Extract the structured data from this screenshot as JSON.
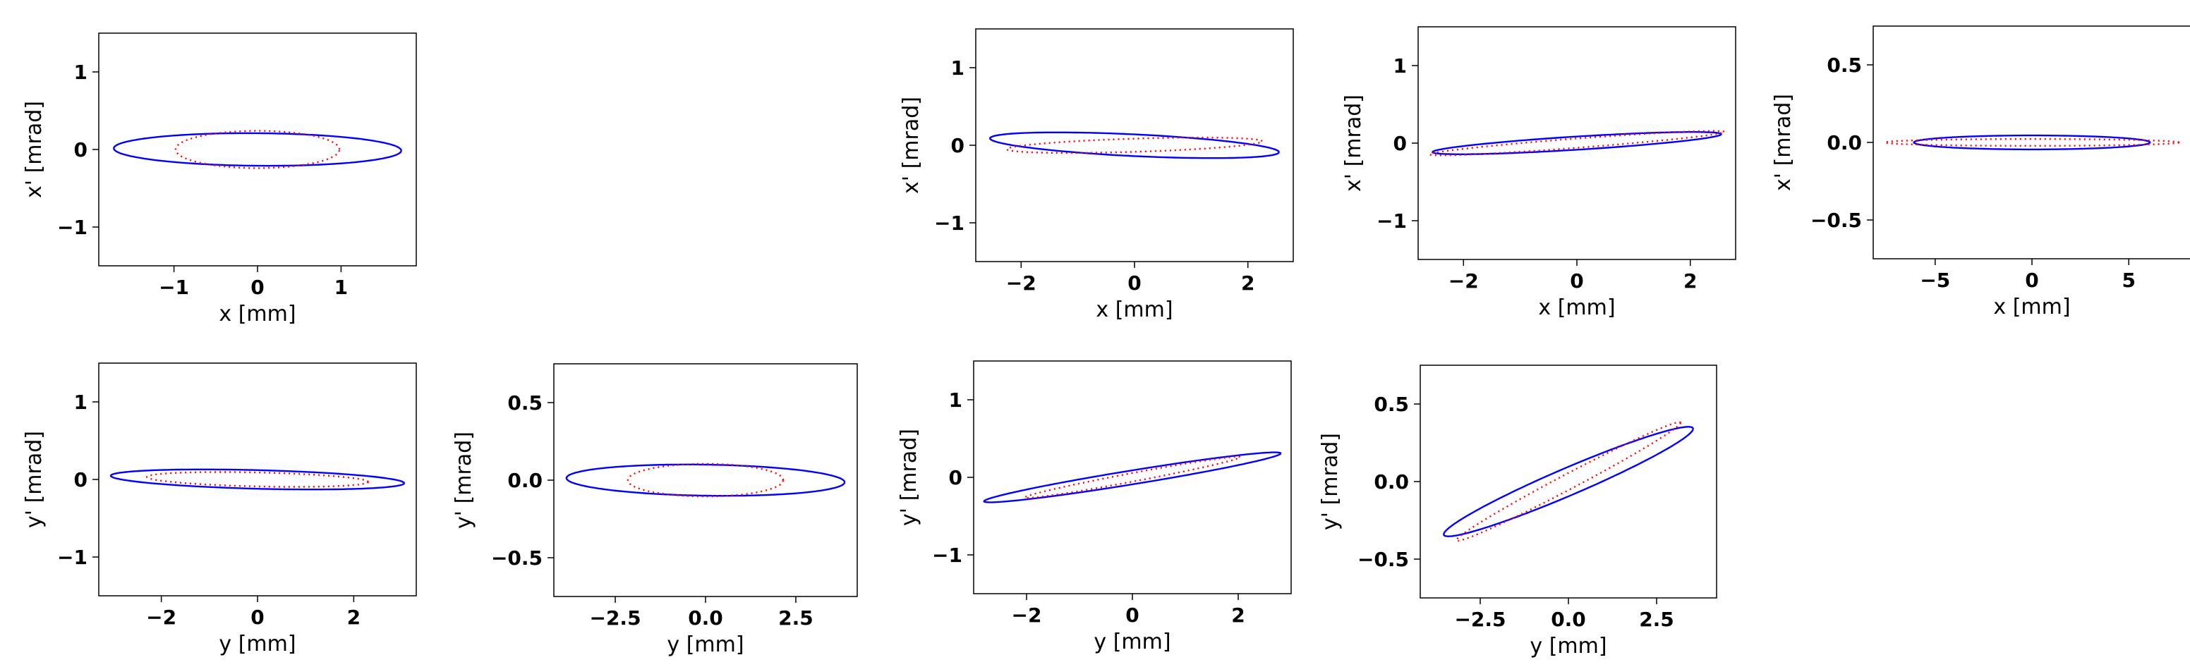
{
  "colors": {
    "solid_series": "#0000ff",
    "dotted_series": "#ff0000"
  },
  "chart_data": [
    {
      "type": "line",
      "panel": "row1-col1",
      "xlabel": "x [mm]",
      "ylabel": "x' [mrad]",
      "xlim": [
        -1.9,
        1.9
      ],
      "ylim": [
        -1.5,
        1.5
      ],
      "xticks": [
        -1,
        0,
        1
      ],
      "yticks": [
        -1,
        0,
        1
      ],
      "xtick_labels": [
        "−1",
        "0",
        "1"
      ],
      "ytick_labels": [
        "−1",
        "0",
        "1"
      ],
      "series": [
        {
          "style": "solid",
          "ellipse": {
            "cx": 0,
            "cy": 0,
            "a": 1.72,
            "b": 0.21,
            "tilt_deg": -0.5
          }
        },
        {
          "style": "dotted",
          "ellipse": {
            "cx": 0,
            "cy": 0,
            "a": 0.98,
            "b": 0.24,
            "tilt_deg": 0
          }
        }
      ]
    },
    {
      "type": "line",
      "panel": "row1-col3",
      "xlabel": "x [mm]",
      "ylabel": "x' [mrad]",
      "xlim": [
        -2.8,
        2.8
      ],
      "ylim": [
        -1.5,
        1.5
      ],
      "xticks": [
        -2,
        0,
        2
      ],
      "yticks": [
        -1,
        0,
        1
      ],
      "xtick_labels": [
        "−2",
        "0",
        "2"
      ],
      "ytick_labels": [
        "−1",
        "0",
        "1"
      ],
      "series": [
        {
          "style": "solid",
          "ellipse": {
            "cx": 0,
            "cy": 0,
            "a": 2.55,
            "b": 0.14,
            "tilt_deg": -2.0
          }
        },
        {
          "style": "dotted",
          "ellipse": {
            "cx": 0,
            "cy": 0,
            "a": 2.25,
            "b": 0.085,
            "tilt_deg": 1.3
          }
        }
      ]
    },
    {
      "type": "line",
      "panel": "row1-col4",
      "xlabel": "x [mm]",
      "ylabel": "x' [mrad]",
      "xlim": [
        -2.8,
        2.8
      ],
      "ylim": [
        -1.5,
        1.5
      ],
      "xticks": [
        -2,
        0,
        2
      ],
      "yticks": [
        -1,
        0,
        1
      ],
      "xtick_labels": [
        "−2",
        "0",
        "2"
      ],
      "ytick_labels": [
        "−1",
        "0",
        "1"
      ],
      "series": [
        {
          "style": "solid",
          "ellipse": {
            "cx": 0,
            "cy": 0,
            "a": 2.55,
            "b": 0.085,
            "tilt_deg": 2.6
          }
        },
        {
          "style": "dotted",
          "ellipse": {
            "cx": 0,
            "cy": 0,
            "a": 2.6,
            "b": 0.06,
            "tilt_deg": 3.2
          }
        }
      ]
    },
    {
      "type": "line",
      "panel": "row1-col5",
      "xlabel": "x [mm]",
      "ylabel": "x' [mrad]",
      "xlim": [
        -8.2,
        8.2
      ],
      "ylim": [
        -0.75,
        0.75
      ],
      "xticks": [
        -5,
        0,
        5
      ],
      "yticks": [
        -0.5,
        0.0,
        0.5
      ],
      "xtick_labels": [
        "−5",
        "0",
        "5"
      ],
      "ytick_labels": [
        "−0.5",
        "0.0",
        "0.5"
      ],
      "series": [
        {
          "style": "solid",
          "ellipse": {
            "cx": 0,
            "cy": 0,
            "a": 6.1,
            "b": 0.045,
            "tilt_deg": 0
          }
        },
        {
          "style": "dotted",
          "ellipse": {
            "cx": 0,
            "cy": 0,
            "a": 7.6,
            "b": 0.022,
            "tilt_deg": 0
          }
        }
      ]
    },
    {
      "type": "line",
      "panel": "row2-col1",
      "xlabel": "y [mm]",
      "ylabel": "y' [mrad]",
      "xlim": [
        -3.3,
        3.3
      ],
      "ylim": [
        -1.5,
        1.5
      ],
      "xticks": [
        -2,
        0,
        2
      ],
      "yticks": [
        -1,
        0,
        1
      ],
      "xtick_labels": [
        "−2",
        "0",
        "2"
      ],
      "ytick_labels": [
        "−1",
        "0",
        "1"
      ],
      "series": [
        {
          "style": "solid",
          "ellipse": {
            "cx": 0,
            "cy": 0,
            "a": 3.05,
            "b": 0.12,
            "tilt_deg": -0.9
          }
        },
        {
          "style": "dotted",
          "ellipse": {
            "cx": 0,
            "cy": 0,
            "a": 2.3,
            "b": 0.09,
            "tilt_deg": -0.8
          }
        }
      ]
    },
    {
      "type": "line",
      "panel": "row2-col2",
      "xlabel": "y [mm]",
      "ylabel": "y' [mrad]",
      "xlim": [
        -4.2,
        4.2
      ],
      "ylim": [
        -0.75,
        0.75
      ],
      "xticks": [
        -2.5,
        0.0,
        2.5
      ],
      "yticks": [
        -0.5,
        0.0,
        0.5
      ],
      "xtick_labels": [
        "−2.5",
        "0.0",
        "2.5"
      ],
      "ytick_labels": [
        "−0.5",
        "0.0",
        "0.5"
      ],
      "series": [
        {
          "style": "solid",
          "ellipse": {
            "cx": 0,
            "cy": 0,
            "a": 3.85,
            "b": 0.1,
            "tilt_deg": -0.2
          }
        },
        {
          "style": "dotted",
          "ellipse": {
            "cx": 0,
            "cy": 0,
            "a": 2.15,
            "b": 0.105,
            "tilt_deg": 0
          }
        }
      ]
    },
    {
      "type": "line",
      "panel": "row2-col3",
      "xlabel": "y [mm]",
      "ylabel": "y' [mrad]",
      "xlim": [
        -3.0,
        3.0
      ],
      "ylim": [
        -1.5,
        1.5
      ],
      "xticks": [
        -2,
        0,
        2
      ],
      "yticks": [
        -1,
        0,
        1
      ],
      "xtick_labels": [
        "−2",
        "0",
        "2"
      ],
      "ytick_labels": [
        "−1",
        "0",
        "1"
      ],
      "series": [
        {
          "style": "solid",
          "ellipse": {
            "cx": 0,
            "cy": 0,
            "a": 2.82,
            "b": 0.09,
            "tilt_deg": 6.3
          }
        },
        {
          "style": "dotted",
          "ellipse": {
            "cx": 0,
            "cy": 0,
            "a": 2.05,
            "b": 0.055,
            "tilt_deg": 7.3
          }
        }
      ]
    },
    {
      "type": "line",
      "panel": "row2-col4",
      "xlabel": "y [mm]",
      "ylabel": "y' [mrad]",
      "xlim": [
        -4.2,
        4.2
      ],
      "ylim": [
        -0.75,
        0.75
      ],
      "xticks": [
        -2.5,
        0.0,
        2.5
      ],
      "yticks": [
        -0.5,
        0.0,
        0.5
      ],
      "xtick_labels": [
        "−2.5",
        "0.0",
        "2.5"
      ],
      "ytick_labels": [
        "−0.5",
        "0.0",
        "0.5"
      ],
      "series": [
        {
          "style": "solid",
          "ellipse": {
            "cx": 0,
            "cy": 0,
            "a": 3.55,
            "b": 0.095,
            "tilt_deg": 5.5
          }
        },
        {
          "style": "dotted",
          "ellipse": {
            "cx": 0,
            "cy": 0,
            "a": 3.2,
            "b": 0.055,
            "tilt_deg": 6.8
          }
        }
      ]
    }
  ]
}
